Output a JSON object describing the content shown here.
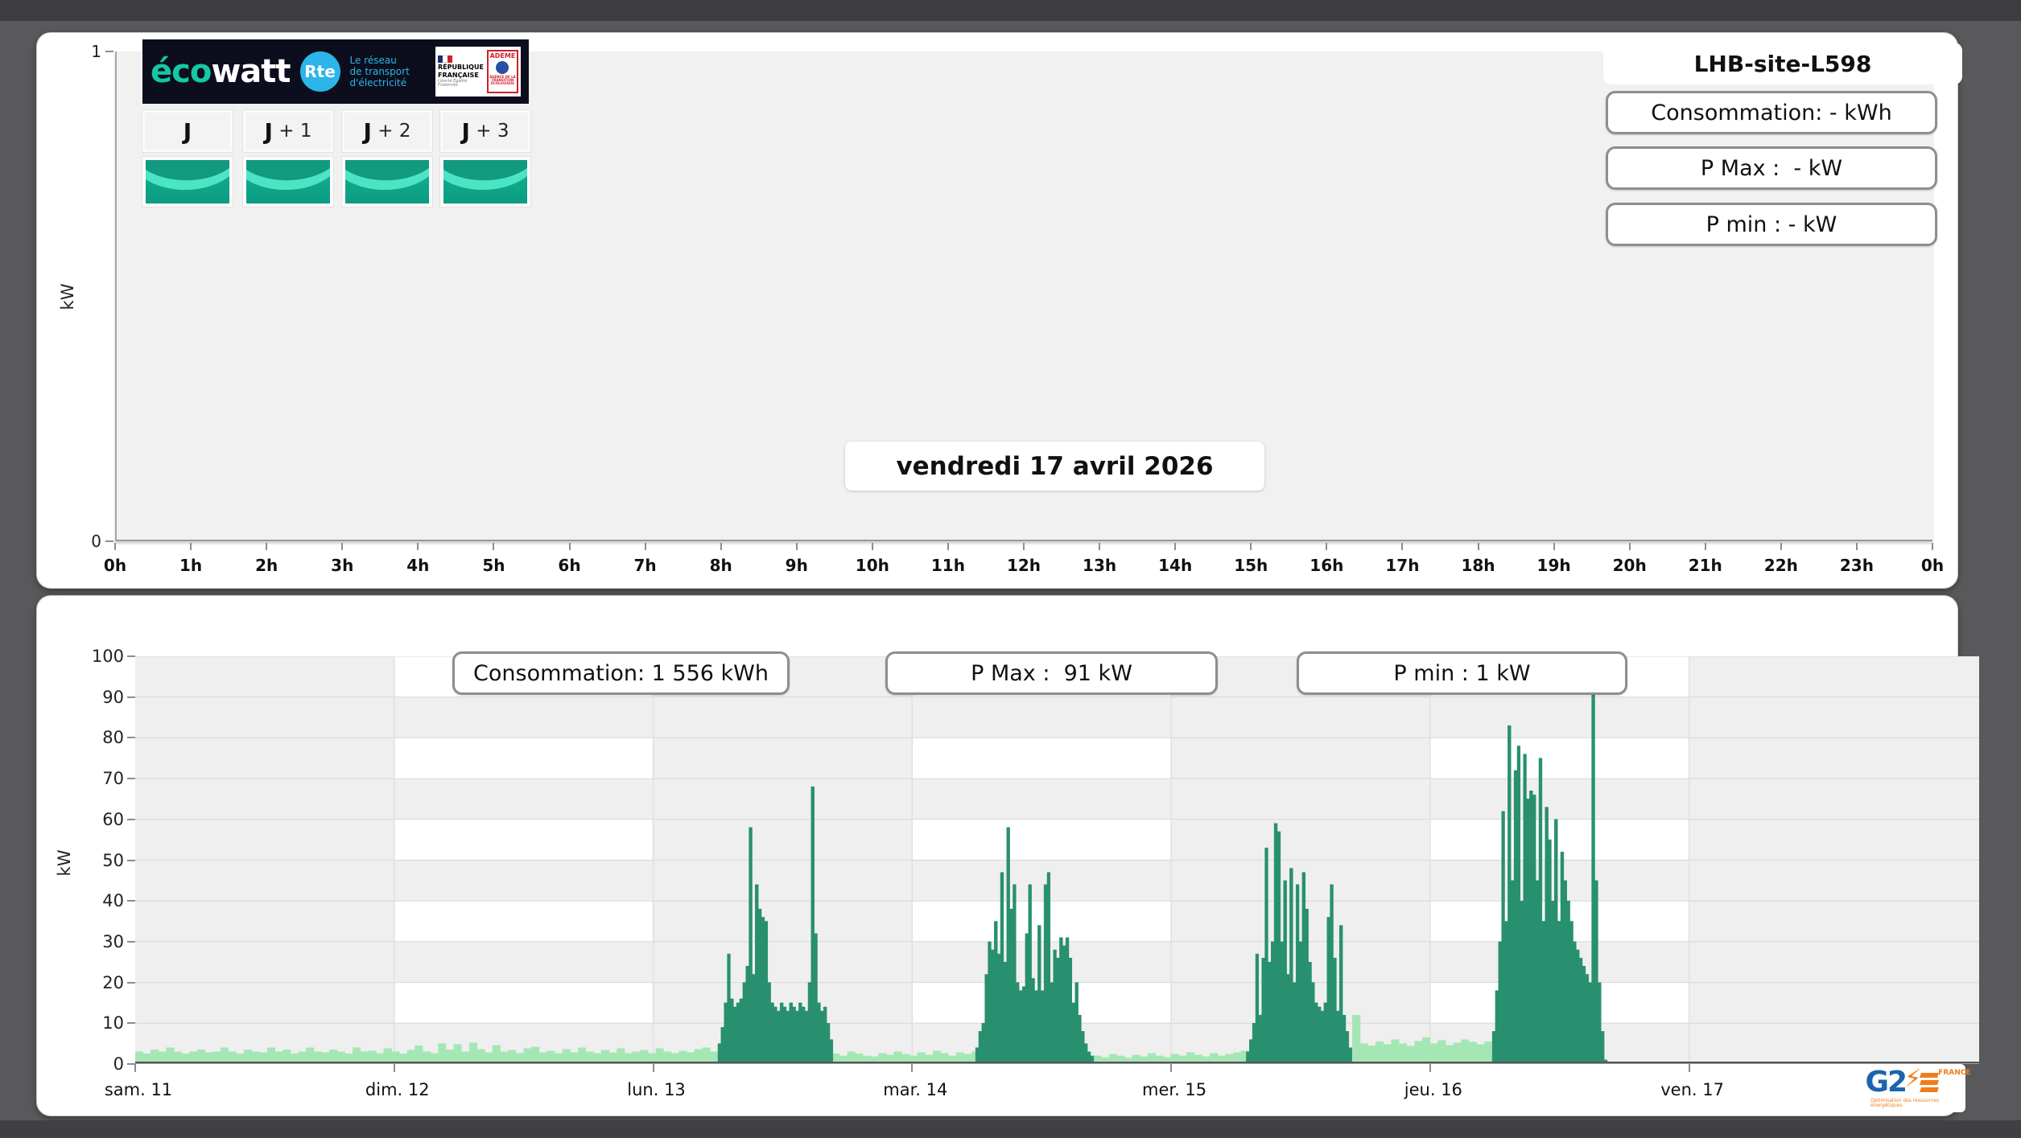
{
  "header": {
    "site_name": "LHB-site-L598"
  },
  "colors": {
    "accent_teal": "#16c7a4",
    "rte_cyan": "#2cb5e8",
    "navy": "#0c0e1d",
    "dark_green": "#28906f",
    "light_green": "#a5e7b4",
    "g2e_blue": "#1c64ad",
    "g2e_orange": "#f07d1a",
    "plot_bg": "#f1f1f1",
    "stripe_white": "#ffffff"
  },
  "logo": {
    "eco": "éco",
    "watt": "watt",
    "rte_circle": "Rte",
    "rte_lines": [
      "Le réseau",
      "de transport",
      "d'électricité"
    ],
    "republique": [
      "RÉPUBLIQUE",
      "FRANÇAISE"
    ],
    "motto": "Liberté Égalité Fraternité",
    "ademe": "ADEME",
    "ademe_sub": "AGENCE DE LA TRANSITION ÉCOLOGIQUE"
  },
  "day_selector": {
    "buttons": [
      "J",
      "J + 1",
      "J + 2",
      "J + 3"
    ],
    "tile_colors": {
      "top": "#129a81",
      "band": "#4fe8c8",
      "base_top": "#17b294",
      "base_bottom": "#0b9c82"
    }
  },
  "g2e_logo": {
    "g2": "G2",
    "e_letter": "E",
    "france": "FRANCE",
    "tagline": "Optimisation des ressources énergétiques"
  },
  "panels": {
    "today": {
      "stats": [
        "Consommation: - kWh",
        "P Max :  - kW",
        "P min : - kW"
      ],
      "date_label": "vendredi 17 avril 2026"
    },
    "week": {
      "stats": [
        "Consommation: 1 556 kWh",
        "P Max :  91 kW",
        "P min : 1 kW"
      ]
    }
  },
  "chart_data": [
    {
      "id": "today",
      "type": "bar",
      "title": "vendredi 17 avril 2026",
      "xlabel": "",
      "ylabel": "kW",
      "ylim": [
        0,
        1
      ],
      "y_tick_labels": [
        "0",
        "1"
      ],
      "grid": false,
      "legend": false,
      "x_tick_labels": [
        "0h",
        "1h",
        "2h",
        "3h",
        "4h",
        "5h",
        "6h",
        "7h",
        "8h",
        "9h",
        "10h",
        "11h",
        "12h",
        "13h",
        "14h",
        "15h",
        "16h",
        "17h",
        "18h",
        "19h",
        "20h",
        "21h",
        "22h",
        "23h",
        "0h"
      ],
      "series": []
    },
    {
      "id": "week",
      "type": "bar",
      "xlabel": "",
      "ylabel": "kW",
      "ylim": [
        0,
        100
      ],
      "y_tick_labels": [
        "0",
        "10",
        "20",
        "30",
        "40",
        "50",
        "60",
        "70",
        "80",
        "90",
        "100"
      ],
      "x_tick_labels": [
        "sam. 11",
        "dim. 12",
        "lun. 13",
        "mar. 14",
        "mer. 15",
        "jeu. 16",
        "ven. 17"
      ],
      "x_domain_days": [
        0,
        7.12
      ],
      "grid": true,
      "legend": false,
      "checkerboard": {
        "white_cols": [
          1,
          3,
          5
        ],
        "white_rows": [
          1,
          3,
          5,
          7,
          9
        ]
      },
      "series": [
        {
          "name": "baseline-veille",
          "color_key": "light_green",
          "segments": [
            {
              "start": 0.0,
              "step": 0.03,
              "values": [
                3,
                2.5,
                3.5,
                3,
                4,
                3,
                2.5,
                3,
                3.5,
                2.8,
                3,
                4,
                3,
                2.5,
                3.5,
                3,
                2.8,
                4,
                3,
                3.5,
                2.5,
                3,
                4,
                3,
                2.8,
                3.5,
                3,
                2.5,
                4,
                3,
                3.2,
                2.6,
                3.8,
                3,
                2.5,
                3.4,
                4.5,
                3,
                2.6,
                5,
                3.5,
                4.8,
                3,
                5.2,
                3.6,
                2.8,
                4.6,
                3,
                3.4,
                2.6,
                3.8,
                4.2,
                2.8,
                3.2,
                2.6,
                3.6,
                2.8,
                4,
                3,
                2.6,
                3.4,
                2.8,
                3.8,
                2.6,
                3,
                3.4,
                2.6,
                3.8,
                3,
                2.6,
                3.2,
                2.8,
                3.6,
                4,
                3
              ]
            },
            {
              "start": 2.69,
              "step": 0.03,
              "values": [
                2.5,
                2,
                3,
                2.5,
                2,
                1.8,
                2.6,
                2.2,
                3,
                2.4,
                2,
                2.8,
                2.2,
                3.2,
                2.6,
                2,
                2.8,
                2.4,
                3
              ]
            },
            {
              "start": 3.7,
              "step": 0.03,
              "values": [
                2,
                1.6,
                2.4,
                2,
                1.5,
                2.2,
                1.8,
                2.6,
                2,
                1.6,
                2.4,
                2,
                2.8,
                2.2,
                1.8,
                2.6,
                2,
                2.4,
                2.8,
                3.2
              ]
            },
            {
              "start": 4.7,
              "step": 0.03,
              "values": [
                12,
                5,
                4.5,
                5.5,
                4.8,
                6,
                5,
                4.4,
                5.6,
                6.5,
                5,
                5.8,
                4.6,
                5.2,
                6,
                5.4,
                4.8,
                5.5
              ]
            }
          ]
        },
        {
          "name": "consommation-active",
          "color_key": "dark_green",
          "segments": [
            {
              "start": 2.25,
              "step": 0.012,
              "values": [
                5,
                9,
                15,
                27,
                16,
                14,
                15,
                16,
                20,
                24,
                58,
                22,
                44,
                38,
                36,
                35,
                20,
                15,
                14,
                13,
                15,
                14,
                13,
                15,
                14,
                13,
                15,
                14,
                13,
                20,
                68,
                32,
                15,
                13,
                14,
                10,
                6
              ]
            },
            {
              "start": 3.245,
              "step": 0.012,
              "values": [
                4,
                8,
                10,
                22,
                30,
                28,
                35,
                27,
                47,
                25,
                58,
                38,
                44,
                20,
                18,
                19,
                32,
                44,
                21,
                18,
                34,
                18,
                44,
                47,
                20,
                28,
                26,
                31,
                29,
                31,
                26,
                15,
                20,
                12,
                8,
                5,
                3,
                2
              ]
            },
            {
              "start": 4.29,
              "step": 0.012,
              "values": [
                3,
                6,
                10,
                27,
                12,
                26,
                53,
                25,
                30,
                59,
                57,
                30,
                45,
                22,
                48,
                20,
                44,
                30,
                47,
                38,
                25,
                20,
                15,
                14,
                13,
                15,
                36,
                44,
                26,
                13,
                34,
                12,
                8,
                4
              ]
            },
            {
              "start": 5.24,
              "step": 0.012,
              "values": [
                8,
                18,
                30,
                62,
                35,
                83,
                45,
                72,
                78,
                40,
                76,
                65,
                67,
                66,
                45,
                75,
                35,
                63,
                55,
                40,
                60,
                35,
                52,
                45,
                40,
                35,
                30,
                28,
                26,
                24,
                22,
                20,
                91,
                45,
                20,
                8,
                1
              ]
            }
          ]
        }
      ]
    }
  ]
}
